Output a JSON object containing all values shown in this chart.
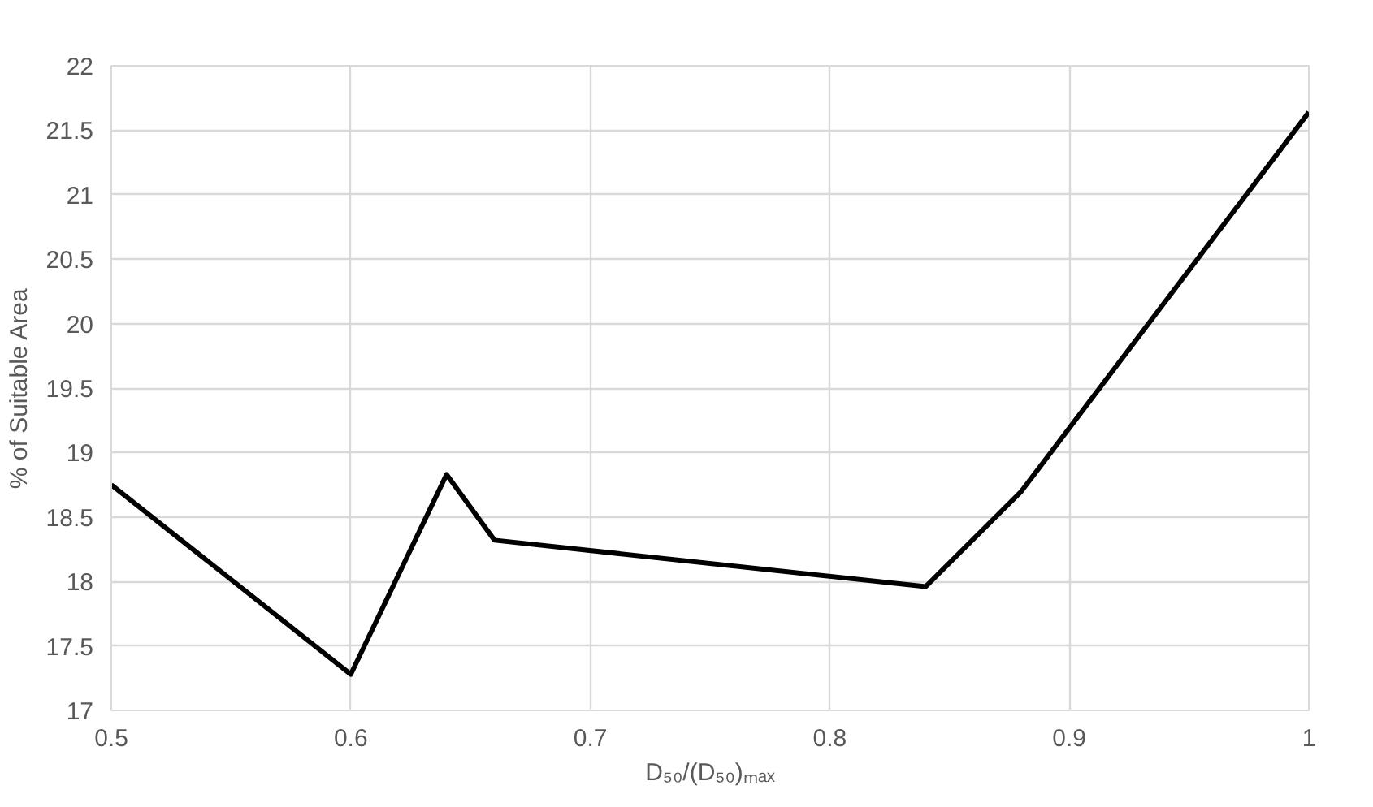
{
  "chart_data": {
    "type": "line",
    "xlabel": "D₅₀/(D₅₀)ₘₐₓ",
    "ylabel": "% of Suitable Area",
    "x": [
      0.5,
      0.6,
      0.64,
      0.66,
      0.84,
      0.88,
      1.0
    ],
    "series": [
      {
        "color": "#000000",
        "values": [
          18.75,
          17.28,
          18.83,
          18.32,
          17.96,
          18.7,
          21.64
        ]
      }
    ],
    "xlim": [
      0.5,
      1.0
    ],
    "xticks": [
      0.5,
      0.6,
      0.7,
      0.8,
      0.9,
      1
    ],
    "ylim": [
      17,
      22
    ],
    "yticks": [
      17,
      17.5,
      18,
      18.5,
      19,
      19.5,
      20,
      20.5,
      21,
      21.5,
      22
    ],
    "grid": true,
    "line_style": "solid",
    "marker": "none"
  }
}
